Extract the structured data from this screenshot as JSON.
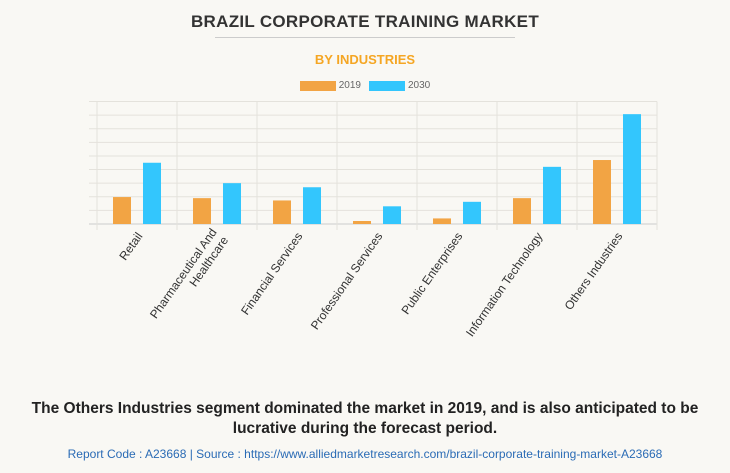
{
  "title": "BRAZIL CORPORATE TRAINING MARKET",
  "subtitle": "BY INDUSTRIES",
  "chart_data": {
    "type": "bar",
    "title": "BRAZIL CORPORATE TRAINING MARKET",
    "subtitle": "BY INDUSTRIES",
    "categories": [
      [
        "Retail"
      ],
      [
        "Pharmaceutical And",
        "Healthcare"
      ],
      [
        "Financial Services"
      ],
      [
        "Professional Services"
      ],
      [
        "Public Enterprises"
      ],
      [
        "Information Technology"
      ],
      [
        "Others Industries"
      ]
    ],
    "series": [
      {
        "name": "2019",
        "color": "#f2a444",
        "values": [
          1.98,
          1.9,
          1.73,
          0.22,
          0.41,
          1.9,
          4.7
        ]
      },
      {
        "name": "2030",
        "color": "#33c6fd",
        "values": [
          4.5,
          3.0,
          2.7,
          1.3,
          1.63,
          4.2,
          8.07
        ]
      }
    ],
    "ylim": [
      0,
      9
    ],
    "grid": true,
    "legend": "top-center",
    "xlabel": "",
    "ylabel": ""
  },
  "footnote": "The Others Industries segment dominated the market in 2019, and is also anticipated to be lucrative during the forecast period.",
  "source": "Report Code : A23668  |  Source : https://www.alliedmarketresearch.com/brazil-corporate-training-market-A23668"
}
